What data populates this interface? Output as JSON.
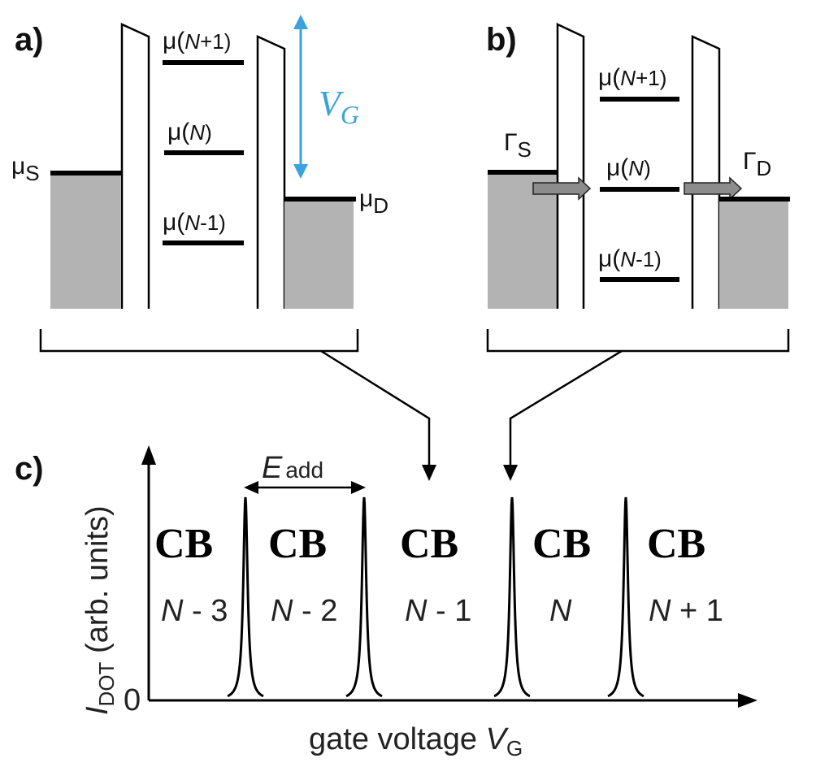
{
  "panels": {
    "a": {
      "label": "a)",
      "mu_source": "μ",
      "mu_source_sub": "S",
      "mu_drain": "μ",
      "mu_drain_sub": "D",
      "levels": [
        {
          "mu": "μ(",
          "n": "N",
          "suffix": "+1)"
        },
        {
          "mu": "μ(",
          "n": "N",
          "suffix": ")"
        },
        {
          "mu": "μ(",
          "n": "N",
          "suffix": "-1)"
        }
      ],
      "gate_voltage": "V",
      "gate_voltage_sub": "G",
      "gate_color": "#3aa2dc"
    },
    "b": {
      "label": "b)",
      "gamma_source": "Γ",
      "gamma_source_sub": "S",
      "gamma_drain": "Γ",
      "gamma_drain_sub": "D",
      "levels": [
        {
          "mu": "μ(",
          "n": "N",
          "suffix": "+1)"
        },
        {
          "mu": "μ(",
          "n": "N",
          "suffix": ")"
        },
        {
          "mu": "μ(",
          "n": "N",
          "suffix": "-1)"
        }
      ]
    },
    "c": {
      "label": "c)",
      "y_label_main": "I",
      "y_label_sub": "DOT",
      "y_label_rest": " (arb. units)",
      "y_zero": "0",
      "x_label_main": "gate voltage ",
      "x_label_var": "V",
      "x_label_sub": "G",
      "e_add": "E",
      "e_add_sub": "add",
      "cb_label": "CB",
      "regions": [
        {
          "n": "N",
          "suffix": " - 3"
        },
        {
          "n": "N",
          "suffix": " - 2"
        },
        {
          "n": "N",
          "suffix": " - 1"
        },
        {
          "n": "N",
          "suffix": ""
        },
        {
          "n": "N",
          "suffix": " + 1"
        }
      ]
    }
  },
  "colors": {
    "reservoir_fill": "#b3b3b3",
    "arrow_fill": "#8c8c8c"
  }
}
